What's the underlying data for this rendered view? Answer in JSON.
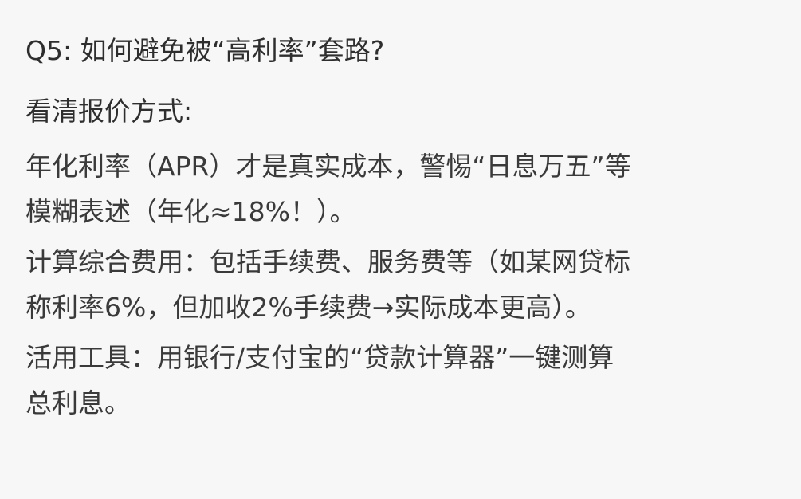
{
  "content": {
    "question": "Q5: 如何避免被“高利率”套路?",
    "heading": "看清报价方式:",
    "paragraphs": [
      {
        "line1": "年化利率（APR）才是真实成本，警惕“日息万五”等",
        "line2": "模糊表述（年化≈18%！）。"
      },
      {
        "line1": "计算综合费用：包括手续费、服务费等（如某网贷标",
        "line2": "称利率6%，但加收2%手续费→实际成本更高）。"
      },
      {
        "line1": "活用工具：用银行/支付宝的“贷款计算器”一键测算",
        "line2": "总利息。"
      }
    ]
  }
}
